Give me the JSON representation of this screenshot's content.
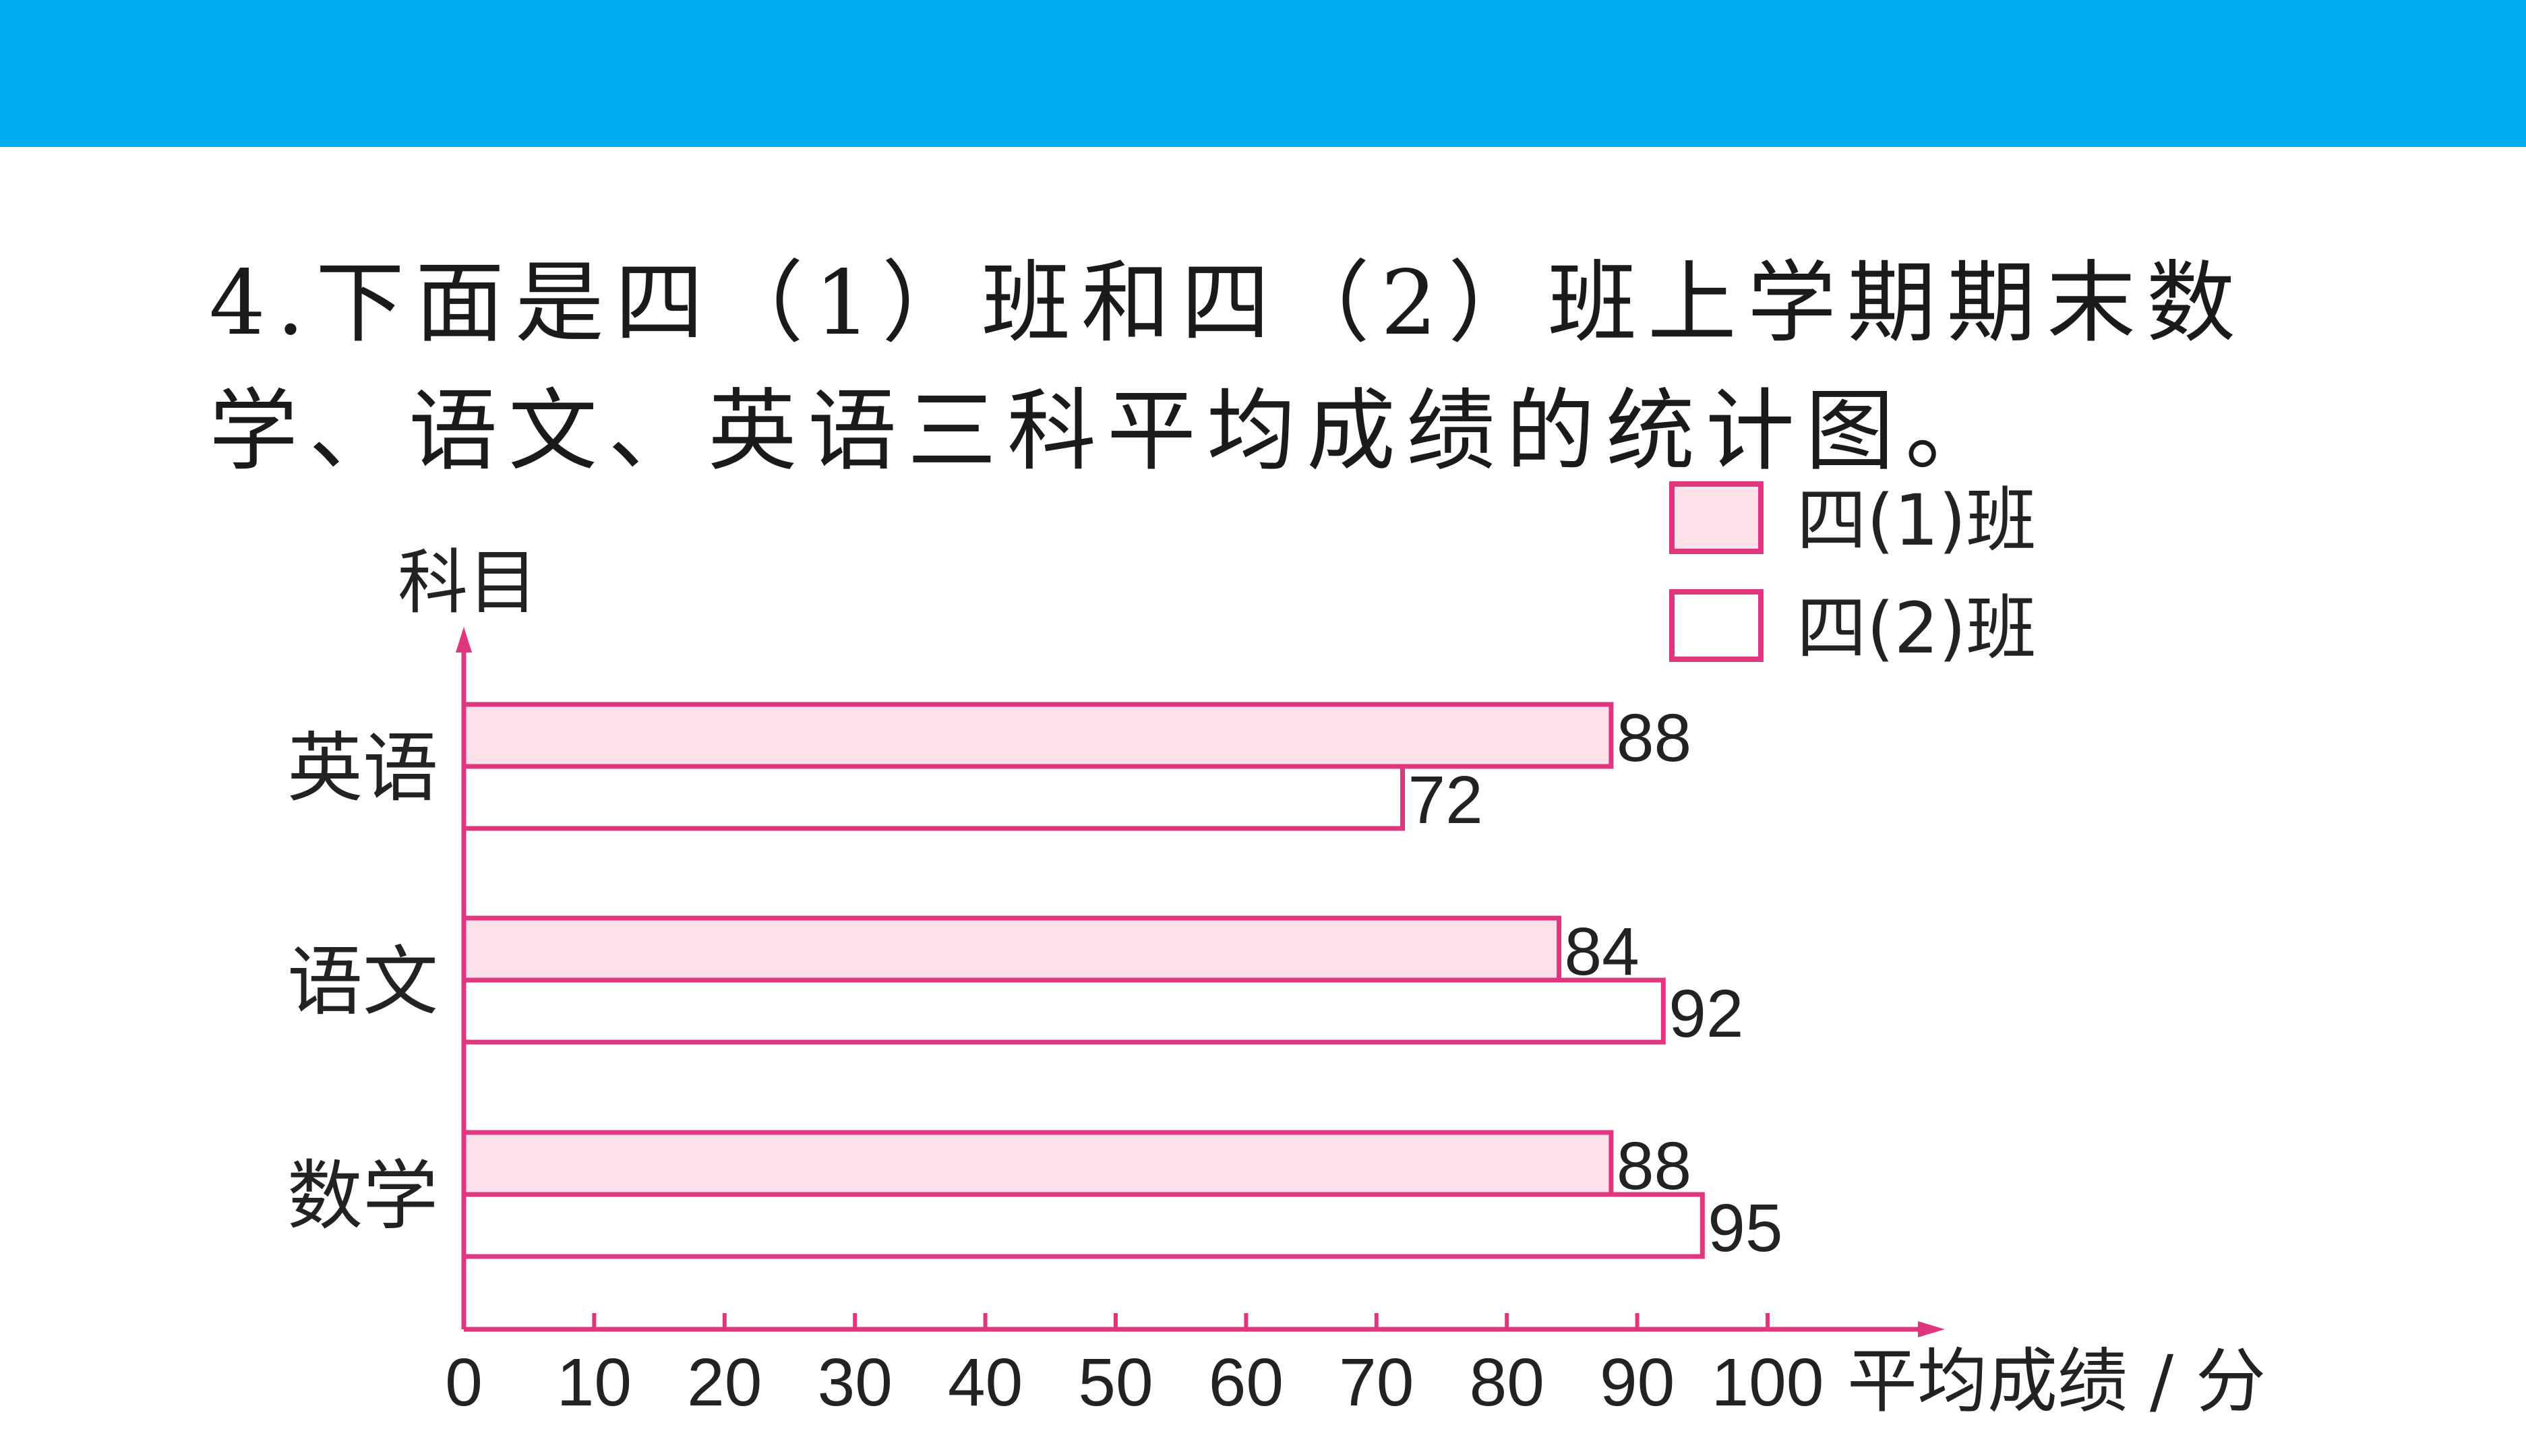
{
  "header": {
    "bar_color": "#00AEEF"
  },
  "question": {
    "text": "4.下面是四（1）班和四（2）班上学期期末数学、语文、英语三科平均成绩的统计图。"
  },
  "chart_data": {
    "type": "bar",
    "orientation": "horizontal",
    "categories": [
      "英语",
      "语文",
      "数学"
    ],
    "series": [
      {
        "name": "四(1)班",
        "values": [
          88,
          84,
          88
        ],
        "fill": "#FCE1EA"
      },
      {
        "name": "四(2)班",
        "values": [
          72,
          92,
          95
        ],
        "fill": "#FFFFFF"
      }
    ],
    "xlabel": "平均成绩 / 分",
    "ylabel": "科目",
    "xlim": [
      0,
      100
    ],
    "xticks": [
      "0",
      "10",
      "20",
      "30",
      "40",
      "50",
      "60",
      "70",
      "80",
      "90",
      "100"
    ],
    "grid": false,
    "legend": "top-right",
    "accent_color": "#E0357F",
    "data_labels": true
  }
}
